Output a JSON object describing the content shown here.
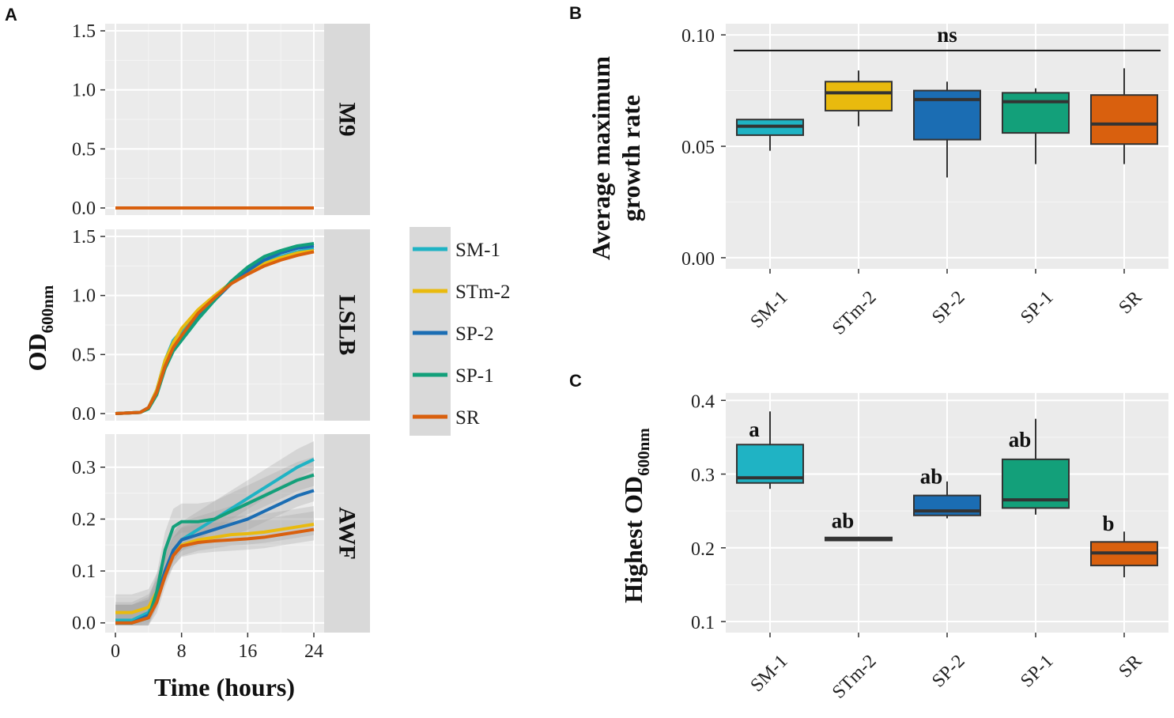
{
  "colors": {
    "SM-1": "#1fb3c4",
    "STm-2": "#e9ba0e",
    "SP-2": "#1b6db3",
    "SP-1": "#13a07a",
    "SR": "#d9600e",
    "panel_bg": "#ebebeb",
    "strip_bg": "#d9d9d9",
    "ribbon": "#9e9e9e"
  },
  "chart_data": [
    {
      "panel": "A",
      "type": "line",
      "title": "",
      "xlabel": "Time (hours)",
      "ylabel_main": "OD",
      "ylabel_sub": "600nm",
      "xlim": [
        0,
        24
      ],
      "xticks": [
        0,
        8,
        16,
        24
      ],
      "legend": {
        "position": "right",
        "entries": [
          "SM-1",
          "STm-2",
          "SP-2",
          "SP-1",
          "SR"
        ]
      },
      "facets": [
        {
          "strip_label": "M9",
          "ylim": [
            0,
            1.5
          ],
          "yticks": [
            0.0,
            0.5,
            1.0,
            1.5
          ],
          "tick_labels": [
            "0.0",
            "0.5",
            "1.0",
            "1.5"
          ],
          "series": [
            {
              "name": "SM-1",
              "points": [
                [
                  0,
                  0
                ],
                [
                  24,
                  0
                ]
              ]
            },
            {
              "name": "STm-2",
              "points": [
                [
                  0,
                  0
                ],
                [
                  24,
                  0
                ]
              ]
            },
            {
              "name": "SP-2",
              "points": [
                [
                  0,
                  0
                ],
                [
                  24,
                  0
                ]
              ]
            },
            {
              "name": "SP-1",
              "points": [
                [
                  0,
                  0
                ],
                [
                  24,
                  0
                ]
              ]
            },
            {
              "name": "SR",
              "points": [
                [
                  0,
                  0
                ],
                [
                  24,
                  0
                ]
              ]
            }
          ]
        },
        {
          "strip_label": "LSLB",
          "ylim": [
            0,
            1.5
          ],
          "yticks": [
            0.0,
            0.5,
            1.0,
            1.5
          ],
          "tick_labels": [
            "0.0",
            "0.5",
            "1.0",
            "1.5"
          ],
          "series": [
            {
              "name": "SM-1",
              "points": [
                [
                  0,
                  0
                ],
                [
                  3,
                  0.01
                ],
                [
                  4,
                  0.05
                ],
                [
                  5,
                  0.2
                ],
                [
                  6,
                  0.45
                ],
                [
                  7,
                  0.62
                ],
                [
                  8,
                  0.7
                ],
                [
                  10,
                  0.85
                ],
                [
                  12,
                  0.98
                ],
                [
                  14,
                  1.1
                ],
                [
                  16,
                  1.2
                ],
                [
                  18,
                  1.28
                ],
                [
                  20,
                  1.33
                ],
                [
                  22,
                  1.37
                ],
                [
                  24,
                  1.4
                ]
              ]
            },
            {
              "name": "STm-2",
              "points": [
                [
                  0,
                  0
                ],
                [
                  3,
                  0.01
                ],
                [
                  4,
                  0.05
                ],
                [
                  5,
                  0.2
                ],
                [
                  6,
                  0.45
                ],
                [
                  7,
                  0.6
                ],
                [
                  8,
                  0.72
                ],
                [
                  10,
                  0.88
                ],
                [
                  12,
                  1.0
                ],
                [
                  14,
                  1.11
                ],
                [
                  16,
                  1.2
                ],
                [
                  18,
                  1.27
                ],
                [
                  20,
                  1.32
                ],
                [
                  22,
                  1.36
                ],
                [
                  24,
                  1.38
                ]
              ]
            },
            {
              "name": "SP-2",
              "points": [
                [
                  0,
                  0
                ],
                [
                  3,
                  0.01
                ],
                [
                  4,
                  0.05
                ],
                [
                  5,
                  0.18
                ],
                [
                  6,
                  0.4
                ],
                [
                  7,
                  0.55
                ],
                [
                  8,
                  0.65
                ],
                [
                  10,
                  0.82
                ],
                [
                  12,
                  0.96
                ],
                [
                  14,
                  1.1
                ],
                [
                  16,
                  1.21
                ],
                [
                  18,
                  1.3
                ],
                [
                  20,
                  1.36
                ],
                [
                  22,
                  1.4
                ],
                [
                  24,
                  1.42
                ]
              ]
            },
            {
              "name": "SP-1",
              "points": [
                [
                  0,
                  0
                ],
                [
                  3,
                  0.01
                ],
                [
                  4,
                  0.04
                ],
                [
                  5,
                  0.16
                ],
                [
                  6,
                  0.38
                ],
                [
                  7,
                  0.53
                ],
                [
                  8,
                  0.62
                ],
                [
                  10,
                  0.8
                ],
                [
                  12,
                  0.96
                ],
                [
                  14,
                  1.12
                ],
                [
                  16,
                  1.24
                ],
                [
                  18,
                  1.33
                ],
                [
                  20,
                  1.38
                ],
                [
                  22,
                  1.42
                ],
                [
                  24,
                  1.44
                ]
              ]
            },
            {
              "name": "SR",
              "points": [
                [
                  0,
                  0
                ],
                [
                  3,
                  0.01
                ],
                [
                  4,
                  0.05
                ],
                [
                  5,
                  0.18
                ],
                [
                  6,
                  0.4
                ],
                [
                  7,
                  0.56
                ],
                [
                  8,
                  0.66
                ],
                [
                  10,
                  0.85
                ],
                [
                  12,
                  0.98
                ],
                [
                  14,
                  1.1
                ],
                [
                  16,
                  1.18
                ],
                [
                  18,
                  1.25
                ],
                [
                  20,
                  1.3
                ],
                [
                  22,
                  1.34
                ],
                [
                  24,
                  1.37
                ]
              ]
            }
          ]
        },
        {
          "strip_label": "AWF",
          "ylim": [
            -0.005,
            0.35
          ],
          "yticks": [
            0.0,
            0.1,
            0.2,
            0.3
          ],
          "tick_labels": [
            "0.0",
            "0.1",
            "0.2",
            "0.3"
          ],
          "ribbon_halfwidth": 0.035,
          "series": [
            {
              "name": "SM-1",
              "points": [
                [
                  0,
                  0.005
                ],
                [
                  2,
                  0.005
                ],
                [
                  4,
                  0.02
                ],
                [
                  5,
                  0.05
                ],
                [
                  6,
                  0.1
                ],
                [
                  7,
                  0.14
                ],
                [
                  8,
                  0.16
                ],
                [
                  10,
                  0.18
                ],
                [
                  12,
                  0.2
                ],
                [
                  14,
                  0.22
                ],
                [
                  16,
                  0.24
                ],
                [
                  18,
                  0.26
                ],
                [
                  20,
                  0.28
                ],
                [
                  22,
                  0.3
                ],
                [
                  24,
                  0.315
                ]
              ]
            },
            {
              "name": "STm-2",
              "points": [
                [
                  0,
                  0.02
                ],
                [
                  2,
                  0.02
                ],
                [
                  3,
                  0.025
                ],
                [
                  4,
                  0.03
                ],
                [
                  5,
                  0.06
                ],
                [
                  6,
                  0.1
                ],
                [
                  7,
                  0.13
                ],
                [
                  8,
                  0.15
                ],
                [
                  10,
                  0.16
                ],
                [
                  12,
                  0.165
                ],
                [
                  14,
                  0.17
                ],
                [
                  16,
                  0.172
                ],
                [
                  18,
                  0.175
                ],
                [
                  20,
                  0.18
                ],
                [
                  22,
                  0.185
                ],
                [
                  24,
                  0.19
                ]
              ]
            },
            {
              "name": "SP-2",
              "points": [
                [
                  0,
                  0
                ],
                [
                  2,
                  0
                ],
                [
                  4,
                  0.015
                ],
                [
                  5,
                  0.05
                ],
                [
                  6,
                  0.1
                ],
                [
                  7,
                  0.14
                ],
                [
                  8,
                  0.16
                ],
                [
                  10,
                  0.17
                ],
                [
                  12,
                  0.18
                ],
                [
                  14,
                  0.19
                ],
                [
                  16,
                  0.2
                ],
                [
                  18,
                  0.215
                ],
                [
                  20,
                  0.23
                ],
                [
                  22,
                  0.245
                ],
                [
                  24,
                  0.255
                ]
              ]
            },
            {
              "name": "SP-1",
              "points": [
                [
                  0,
                  0
                ],
                [
                  2,
                  0
                ],
                [
                  4,
                  0.01
                ],
                [
                  5,
                  0.06
                ],
                [
                  6,
                  0.14
                ],
                [
                  7,
                  0.185
                ],
                [
                  8,
                  0.195
                ],
                [
                  10,
                  0.195
                ],
                [
                  12,
                  0.2
                ],
                [
                  14,
                  0.215
                ],
                [
                  16,
                  0.23
                ],
                [
                  18,
                  0.245
                ],
                [
                  20,
                  0.26
                ],
                [
                  22,
                  0.275
                ],
                [
                  24,
                  0.285
                ]
              ]
            },
            {
              "name": "SR",
              "points": [
                [
                  0,
                  0
                ],
                [
                  2,
                  0
                ],
                [
                  4,
                  0.01
                ],
                [
                  5,
                  0.04
                ],
                [
                  6,
                  0.09
                ],
                [
                  7,
                  0.13
                ],
                [
                  8,
                  0.148
                ],
                [
                  10,
                  0.155
                ],
                [
                  12,
                  0.158
                ],
                [
                  14,
                  0.16
                ],
                [
                  16,
                  0.162
                ],
                [
                  18,
                  0.165
                ],
                [
                  20,
                  0.17
                ],
                [
                  22,
                  0.175
                ],
                [
                  24,
                  0.18
                ]
              ]
            }
          ]
        }
      ]
    },
    {
      "panel": "B",
      "type": "box",
      "title": "",
      "xlabel": "",
      "ylabel_lines": [
        "Average maximum",
        "growth rate"
      ],
      "ylim": [
        -0.005,
        0.105
      ],
      "yticks": [
        0.0,
        0.05,
        0.1
      ],
      "tick_labels": [
        "0.00",
        "0.05",
        "0.10"
      ],
      "categories": [
        "SM-1",
        "STm-2",
        "SP-2",
        "SP-1",
        "SR"
      ],
      "boxes": [
        {
          "name": "SM-1",
          "min": 0.048,
          "q1": 0.055,
          "median": 0.059,
          "q3": 0.062,
          "max": 0.062
        },
        {
          "name": "STm-2",
          "min": 0.059,
          "q1": 0.066,
          "median": 0.074,
          "q3": 0.079,
          "max": 0.084
        },
        {
          "name": "SP-2",
          "min": 0.036,
          "q1": 0.053,
          "median": 0.071,
          "q3": 0.075,
          "max": 0.079
        },
        {
          "name": "SP-1",
          "min": 0.042,
          "q1": 0.056,
          "median": 0.07,
          "q3": 0.074,
          "max": 0.076
        },
        {
          "name": "SR",
          "min": 0.042,
          "q1": 0.051,
          "median": 0.06,
          "q3": 0.073,
          "max": 0.085
        }
      ],
      "annotation": {
        "text": "ns",
        "bracket_y": 0.093,
        "from": "SM-1",
        "to": "SR"
      }
    },
    {
      "panel": "C",
      "type": "box",
      "title": "",
      "xlabel": "",
      "ylabel_main": "Highest OD",
      "ylabel_sub": "600nm",
      "ylim": [
        0.085,
        0.41
      ],
      "yticks": [
        0.1,
        0.2,
        0.3,
        0.4
      ],
      "tick_labels": [
        "0.1",
        "0.2",
        "0.3",
        "0.4"
      ],
      "categories": [
        "SM-1",
        "STm-2",
        "SP-2",
        "SP-1",
        "SR"
      ],
      "boxes": [
        {
          "name": "SM-1",
          "min": 0.28,
          "q1": 0.288,
          "median": 0.295,
          "q3": 0.34,
          "max": 0.385
        },
        {
          "name": "STm-2",
          "min": 0.209,
          "q1": 0.21,
          "median": 0.211,
          "q3": 0.214,
          "max": 0.215
        },
        {
          "name": "SP-2",
          "min": 0.24,
          "q1": 0.244,
          "median": 0.25,
          "q3": 0.271,
          "max": 0.29
        },
        {
          "name": "SP-1",
          "min": 0.245,
          "q1": 0.254,
          "median": 0.265,
          "q3": 0.32,
          "max": 0.375
        },
        {
          "name": "SR",
          "min": 0.16,
          "q1": 0.176,
          "median": 0.193,
          "q3": 0.208,
          "max": 0.222
        }
      ],
      "letters": [
        {
          "name": "SM-1",
          "text": "a",
          "y": 0.362
        },
        {
          "name": "STm-2",
          "text": "ab",
          "y": 0.238
        },
        {
          "name": "SP-2",
          "text": "ab",
          "y": 0.298
        },
        {
          "name": "SP-1",
          "text": "ab",
          "y": 0.348
        },
        {
          "name": "SR",
          "text": "b",
          "y": 0.234
        }
      ]
    }
  ]
}
